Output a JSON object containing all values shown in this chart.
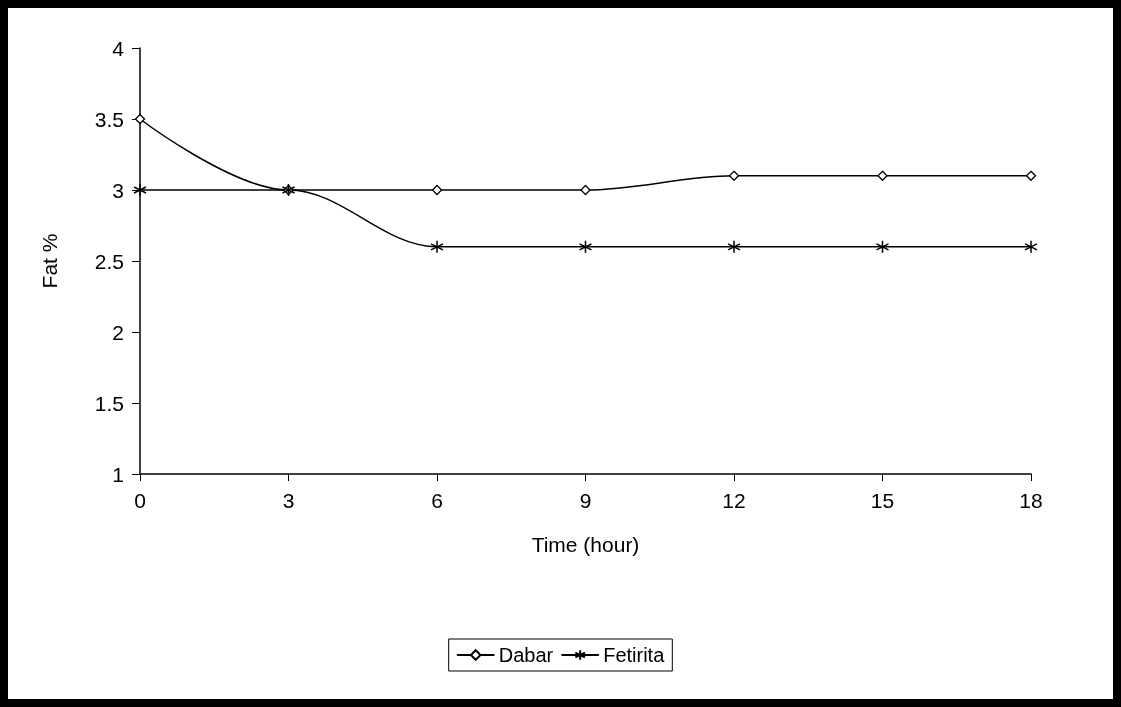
{
  "chart_data": {
    "type": "line",
    "xlabel": "Time (hour)",
    "ylabel": "Fat %",
    "x": [
      0,
      3,
      6,
      9,
      12,
      15,
      18
    ],
    "series": [
      {
        "name": "Dabar",
        "color": "#000000",
        "marker": "diamond",
        "values": [
          3.5,
          3.0,
          3.0,
          3.0,
          3.1,
          3.1,
          3.1
        ]
      },
      {
        "name": "Fetirita",
        "color": "#000000",
        "marker": "cross",
        "values": [
          3.0,
          3.0,
          2.6,
          2.6,
          2.6,
          2.6,
          2.6
        ]
      }
    ],
    "xlim": [
      0,
      18
    ],
    "xticks": [
      0,
      3,
      6,
      9,
      12,
      15,
      18
    ],
    "ylim": [
      1,
      4
    ],
    "yticks": [
      1,
      1.5,
      2,
      2.5,
      3,
      3.5,
      4
    ],
    "grid": false,
    "legend": "bottom",
    "line_style": "solid"
  }
}
